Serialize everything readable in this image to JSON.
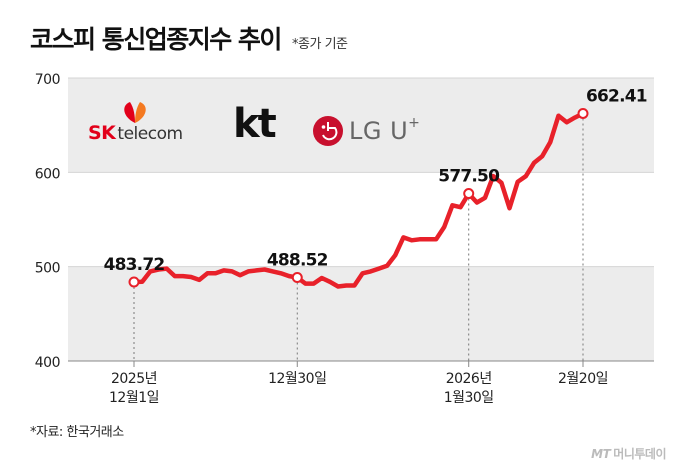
{
  "title": "코스피 통신업종지수 추이",
  "subtitle": "*종가 기준",
  "source": "*자료: 한국거래소",
  "credit": {
    "mark": "MT",
    "name": "머니투데이"
  },
  "logos": {
    "sk_brand": "SK",
    "sk_name": "telecom",
    "kt": "kt",
    "lg": "LG U",
    "lg_sup": "+"
  },
  "colors": {
    "line": "#e8212a",
    "band": "#ececec",
    "sk_red": "#e2001a",
    "sk_orange": "#f47920",
    "lg_red": "#c8102e"
  },
  "chart_data": {
    "type": "line",
    "title": "코스피 통신업종지수 추이",
    "xlabel": "",
    "ylabel": "",
    "ylim": [
      400,
      700
    ],
    "yticks": [
      400,
      500,
      600,
      700
    ],
    "grid": false,
    "x_tick_labels": [
      {
        "index": 0,
        "lines": [
          "2025년",
          "12월1일"
        ]
      },
      {
        "index": 20,
        "lines": [
          "12월30일"
        ]
      },
      {
        "index": 41,
        "lines": [
          "2026년",
          "1월30일"
        ]
      },
      {
        "index": 55,
        "lines": [
          "2월20일"
        ]
      }
    ],
    "series": [
      {
        "values": [
          483.72,
          484,
          495,
          497,
          498,
          490,
          490,
          489,
          486,
          493,
          493,
          496,
          495,
          491,
          495,
          496,
          497,
          495,
          493,
          490,
          488.52,
          482,
          482,
          488,
          484,
          479,
          480,
          480,
          493,
          495,
          498,
          501,
          512,
          531,
          528,
          529,
          529,
          529,
          542,
          565,
          563,
          577.5,
          568,
          573,
          596,
          589,
          562,
          590,
          596,
          610,
          617,
          632,
          660,
          653,
          658,
          662.41
        ]
      }
    ],
    "annotations": [
      {
        "index": 0,
        "label": "483.72"
      },
      {
        "index": 20,
        "label": "488.52"
      },
      {
        "index": 41,
        "label": "577.50"
      },
      {
        "index": 55,
        "label": "662.41"
      }
    ]
  }
}
